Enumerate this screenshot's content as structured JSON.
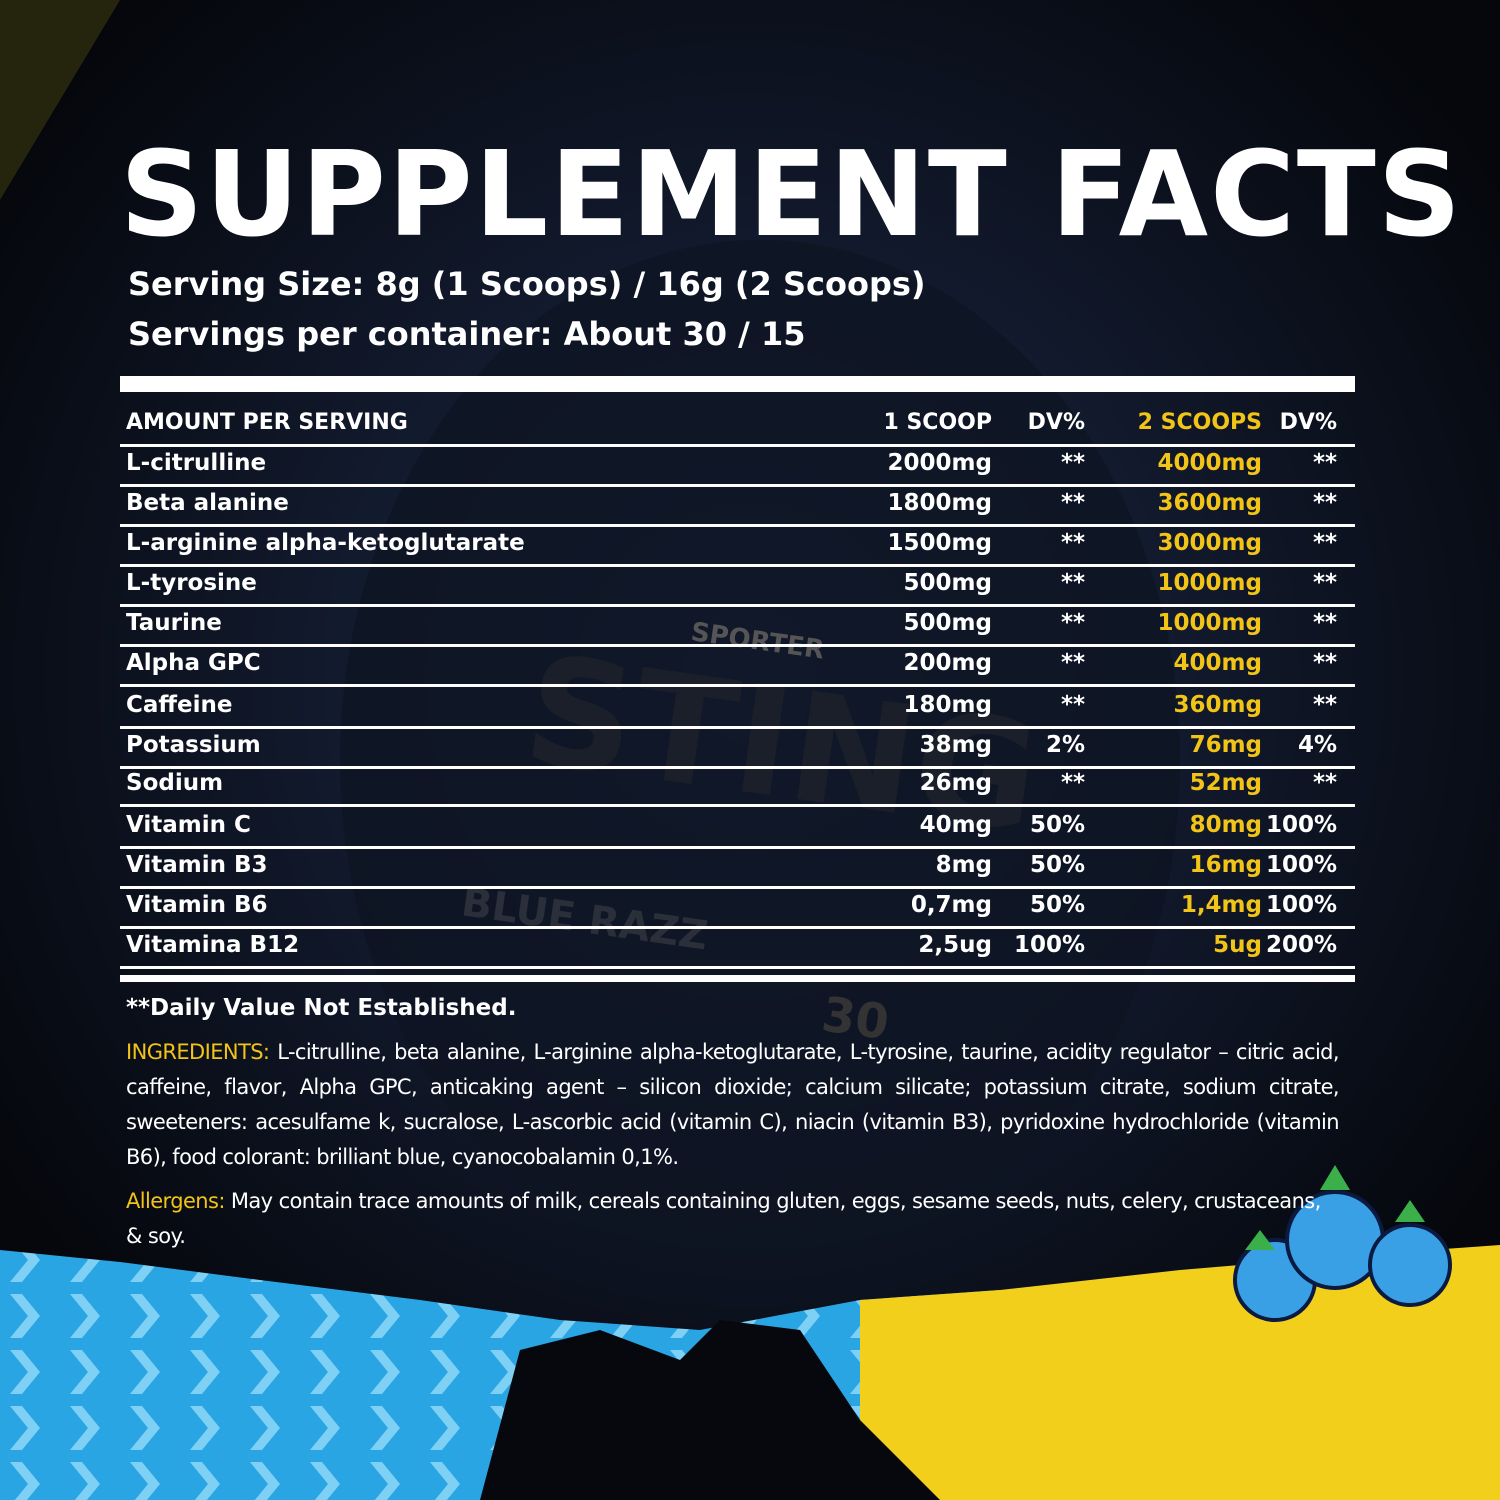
{
  "header": {
    "title": "SUPPLEMENT FACTS",
    "serving_size": "Serving Size: 8g  (1 Scoops) / 16g (2 Scoops)",
    "servings_per_container": "Servings per container: About 30 / 15"
  },
  "table": {
    "columns": [
      "AMOUNT PER SERVING",
      "1 SCOOP",
      "DV%",
      "2 SCOOPS",
      "DV%"
    ],
    "rows": [
      [
        "L-citrulline",
        "2000mg",
        "**",
        "4000mg",
        "**"
      ],
      [
        "Beta alanine",
        "1800mg",
        "**",
        "3600mg",
        "**"
      ],
      [
        "L-arginine alpha-ketoglutarate",
        "1500mg",
        "**",
        "3000mg",
        "**"
      ],
      [
        "L-tyrosine",
        "500mg",
        "**",
        "1000mg",
        "**"
      ],
      [
        "Taurine",
        "500mg",
        "**",
        "1000mg",
        "**"
      ],
      [
        "Alpha GPC",
        "200mg",
        "**",
        "400mg",
        "**"
      ],
      [
        "Caffeine",
        "180mg",
        "**",
        "360mg",
        "**"
      ],
      [
        "Potassium",
        "38mg",
        "2%",
        "76mg",
        "4%"
      ],
      [
        "Sodium",
        "26mg",
        "**",
        "52mg",
        "**"
      ],
      [
        "Vitamin C",
        "40mg",
        "50%",
        "80mg",
        "100%"
      ],
      [
        "Vitamin B3",
        "8mg",
        "50%",
        "16mg",
        "100%"
      ],
      [
        "Vitamin B6",
        "0,7mg",
        "50%",
        "1,4mg",
        "100%"
      ],
      [
        "Vitamina B12",
        "2,5ug",
        "100%",
        "5ug",
        "200%"
      ]
    ]
  },
  "footnote": "**Daily Value Not Established.",
  "ingredients": {
    "label": "INGREDIENTS:",
    "text": "L-citrulline, beta alanine, L-arginine alpha-ketoglutarate, L-tyrosine, taurine, acidity regulator – citric acid, caffeine, flavor, Alpha GPC, anticaking agent – silicon dioxide; calcium silicate; potassium citrate, sodium citrate, sweeteners: acesulfame k, sucralose, L-ascorbic acid (vitamin C), niacin (vitamin B3), pyridoxine hydrochloride (vitamin B6), food colorant: brilliant blue, cyanocobalamin 0,1%."
  },
  "allergens": {
    "label": "Allergens:",
    "text": "May contain trace amounts of milk, cereals containing gluten, eggs, sesame seeds, nuts, celery, crustaceans, & soy."
  },
  "background": {
    "brand": "SPORTER",
    "product": "STING",
    "flavor": "BLUE RAZZ",
    "servings": "30"
  }
}
